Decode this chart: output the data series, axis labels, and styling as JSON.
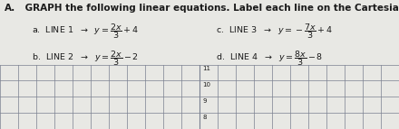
{
  "title_A": "A.",
  "title_main": " GRAPH the following linear equations. Label each line on the Cartesian provided below.",
  "title_fontsize": 7.5,
  "equations_left": [
    "a.  LINE 1  $\\rightarrow$  $y=\\dfrac{2x}{3}+4$",
    "b.  LINE 2  $\\rightarrow$  $y=\\dfrac{2x}{3}-2$"
  ],
  "equations_right": [
    "c.  LINE 3  $\\rightarrow$  $y=-\\dfrac{7x}{3}+4$",
    "d.  LINE 4  $\\rightarrow$  $y=\\dfrac{8x}{3}-8$"
  ],
  "eq_fontsize": 6.8,
  "grid_bg_color": "#c8ccd8",
  "text_bg_color": "#e8e8e4",
  "grid_line_color": "#7a8090",
  "axis_arrow_color": "#4a5878",
  "text_color": "#1a1a1a",
  "ytick_labels": [
    "11",
    "10",
    "9",
    "8"
  ],
  "n_cols": 22,
  "n_rows": 4,
  "axis_col": 11
}
